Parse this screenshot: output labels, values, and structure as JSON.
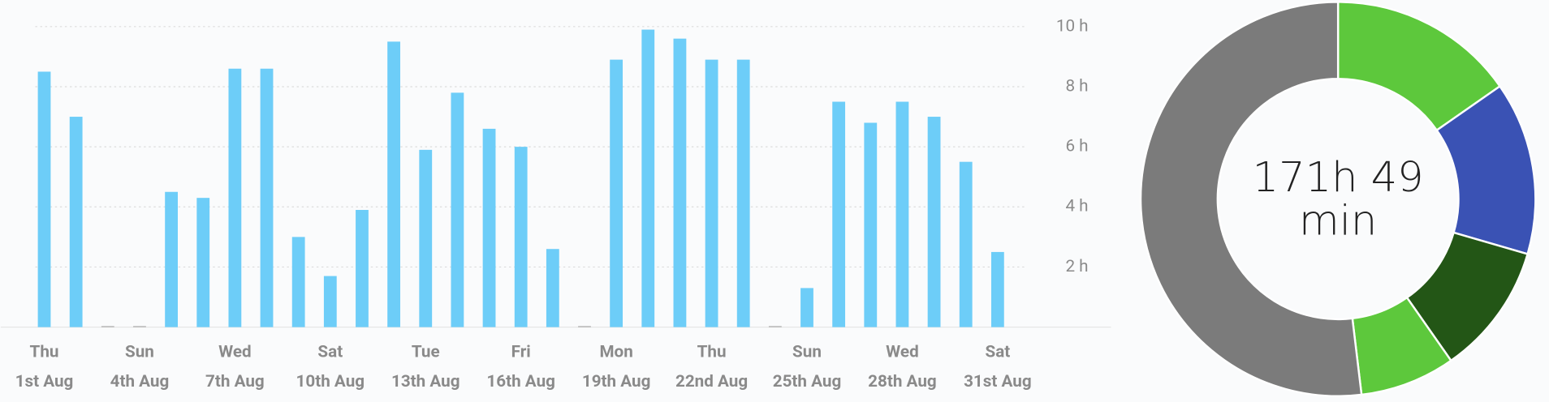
{
  "chart_data": [
    {
      "type": "bar",
      "color": "#6dcdf8",
      "grid": true,
      "categories": [
        [
          "Thu",
          "1st Aug"
        ],
        null,
        null,
        [
          "Sun",
          "4th Aug"
        ],
        null,
        null,
        [
          "Wed",
          "7th Aug"
        ],
        null,
        null,
        [
          "Sat",
          "10th Aug"
        ],
        null,
        null,
        [
          "Tue",
          "13th Aug"
        ],
        null,
        null,
        [
          "Fri",
          "16th Aug"
        ],
        null,
        null,
        [
          "Mon",
          "19th Aug"
        ],
        null,
        null,
        [
          "Thu",
          "22nd Aug"
        ],
        null,
        null,
        [
          "Sun",
          "25th Aug"
        ],
        null,
        null,
        [
          "Wed",
          "28th Aug"
        ],
        null,
        null,
        [
          "Sat",
          "31st Aug"
        ]
      ],
      "values": [
        8.5,
        7.0,
        0,
        0,
        4.5,
        4.3,
        8.6,
        8.6,
        3.0,
        1.7,
        3.9,
        9.5,
        5.9,
        7.8,
        6.6,
        6.0,
        2.6,
        0,
        8.9,
        9.9,
        9.6,
        8.9,
        8.9,
        0,
        1.3,
        7.5,
        6.8,
        7.5,
        7.0,
        5.5,
        2.5
      ],
      "ylim": [
        0,
        10
      ],
      "yticks": [
        {
          "value": 2,
          "label": "2 h"
        },
        {
          "value": 4,
          "label": "4 h"
        },
        {
          "value": 6,
          "label": "6 h"
        },
        {
          "value": 8,
          "label": "8 h"
        },
        {
          "value": 10,
          "label": "10 h"
        }
      ]
    },
    {
      "type": "donut",
      "center_label": "171h 49 min",
      "values": [
        15.3,
        14.2,
        10.8,
        7.8,
        51.9
      ],
      "colors": [
        "#5dc83c",
        "#3a52b4",
        "#235616",
        "#5dc83c",
        "#7b7b7b"
      ]
    }
  ]
}
